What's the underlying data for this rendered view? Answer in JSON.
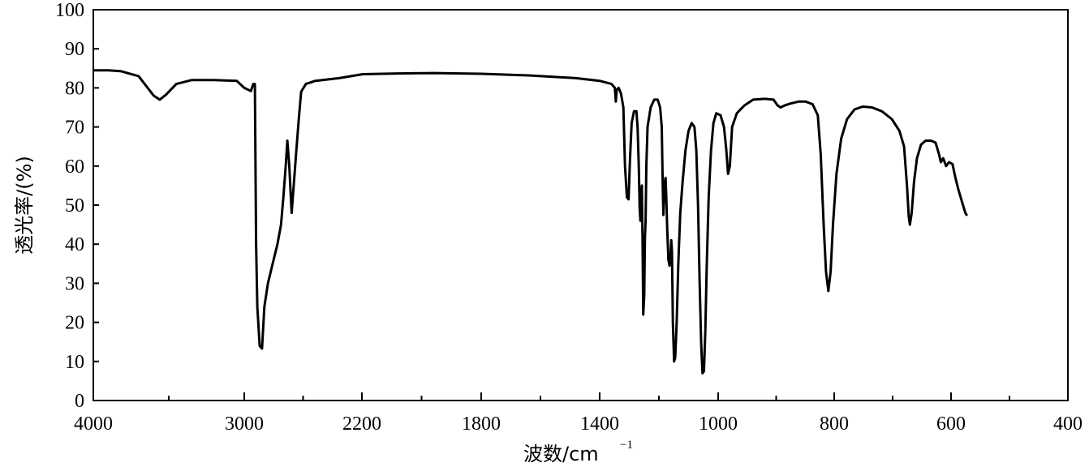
{
  "chart_data": {
    "type": "line",
    "title": "",
    "xlabel_main": "波数/cm",
    "xlabel_sup": "−1",
    "ylabel": "透光率/(%)",
    "ylim": [
      0,
      100
    ],
    "y_ticks": [
      0,
      10,
      20,
      30,
      40,
      50,
      60,
      70,
      80,
      90,
      100
    ],
    "x_tick_labels": [
      "4000",
      "3000",
      "2200",
      "1800",
      "1400",
      "1000",
      "800",
      "600",
      "400"
    ],
    "x_axis_note": "non-linear wavenumber axis: scale changes at 3000 and 1000 cm-1",
    "grid": false,
    "line_color": "#000000",
    "series": [
      {
        "points": [
          [
            4000,
            84.5
          ],
          [
            3900,
            84.5
          ],
          [
            3820,
            84.3
          ],
          [
            3700,
            83.0
          ],
          [
            3600,
            78.0
          ],
          [
            3560,
            77.0
          ],
          [
            3520,
            78.2
          ],
          [
            3450,
            81.0
          ],
          [
            3350,
            82.0
          ],
          [
            3200,
            82.0
          ],
          [
            3050,
            81.8
          ],
          [
            3000,
            80.0
          ],
          [
            2972,
            79.2
          ],
          [
            2962,
            81.0
          ],
          [
            2955,
            81.0
          ],
          [
            2950,
            40.0
          ],
          [
            2945,
            24.0
          ],
          [
            2935,
            14.0
          ],
          [
            2925,
            13.3
          ],
          [
            2915,
            24.0
          ],
          [
            2900,
            30.0
          ],
          [
            2880,
            35.0
          ],
          [
            2860,
            40.0
          ],
          [
            2845,
            45.0
          ],
          [
            2835,
            52.0
          ],
          [
            2825,
            60.0
          ],
          [
            2818,
            66.5
          ],
          [
            2810,
            60.0
          ],
          [
            2800,
            48.0
          ],
          [
            2790,
            56.0
          ],
          [
            2780,
            64.0
          ],
          [
            2770,
            72.0
          ],
          [
            2760,
            79.0
          ],
          [
            2740,
            81.0
          ],
          [
            2700,
            81.8
          ],
          [
            2600,
            82.5
          ],
          [
            2500,
            83.5
          ],
          [
            2350,
            83.7
          ],
          [
            2200,
            83.8
          ],
          [
            2000,
            83.6
          ],
          [
            1800,
            83.2
          ],
          [
            1600,
            82.5
          ],
          [
            1500,
            81.8
          ],
          [
            1450,
            81.0
          ],
          [
            1436,
            80.0
          ],
          [
            1432,
            76.5
          ],
          [
            1428,
            79.5
          ],
          [
            1420,
            80.0
          ],
          [
            1410,
            78.5
          ],
          [
            1400,
            75.0
          ],
          [
            1393,
            60.0
          ],
          [
            1385,
            52.0
          ],
          [
            1378,
            51.5
          ],
          [
            1372,
            62.0
          ],
          [
            1365,
            71.0
          ],
          [
            1355,
            74.0
          ],
          [
            1345,
            74.0
          ],
          [
            1340,
            70.0
          ],
          [
            1335,
            60.0
          ],
          [
            1331,
            49.0
          ],
          [
            1328,
            46.0
          ],
          [
            1325,
            52.0
          ],
          [
            1322,
            55.0
          ],
          [
            1319,
            40.0
          ],
          [
            1316,
            22.0
          ],
          [
            1312,
            27.0
          ],
          [
            1309,
            42.0
          ],
          [
            1306,
            46.0
          ],
          [
            1303,
            60.0
          ],
          [
            1298,
            70.0
          ],
          [
            1285,
            75.0
          ],
          [
            1270,
            77.0
          ],
          [
            1255,
            77.0
          ],
          [
            1245,
            75.0
          ],
          [
            1238,
            70.0
          ],
          [
            1234,
            55.0
          ],
          [
            1231,
            47.5
          ],
          [
            1228,
            52.0
          ],
          [
            1225,
            56.0
          ],
          [
            1222,
            57.0
          ],
          [
            1219,
            52.0
          ],
          [
            1215,
            44.0
          ],
          [
            1210,
            36.0
          ],
          [
            1205,
            34.5
          ],
          [
            1201,
            37.0
          ],
          [
            1198,
            41.0
          ],
          [
            1195,
            38.0
          ],
          [
            1191,
            20.0
          ],
          [
            1186,
            10.0
          ],
          [
            1181,
            11.0
          ],
          [
            1175,
            20.0
          ],
          [
            1168,
            35.0
          ],
          [
            1160,
            48.0
          ],
          [
            1150,
            56.0
          ],
          [
            1138,
            64.0
          ],
          [
            1125,
            69.0
          ],
          [
            1112,
            71.0
          ],
          [
            1100,
            70.0
          ],
          [
            1092,
            64.0
          ],
          [
            1085,
            50.0
          ],
          [
            1078,
            30.0
          ],
          [
            1072,
            15.0
          ],
          [
            1066,
            7.0
          ],
          [
            1060,
            7.5
          ],
          [
            1054,
            18.0
          ],
          [
            1048,
            35.0
          ],
          [
            1040,
            52.0
          ],
          [
            1030,
            64.0
          ],
          [
            1020,
            71.0
          ],
          [
            1008,
            73.5
          ],
          [
            996,
            73.0
          ],
          [
            990,
            70.0
          ],
          [
            986,
            64.0
          ],
          [
            983,
            58.0
          ],
          [
            980,
            60.0
          ],
          [
            976,
            70.0
          ],
          [
            968,
            73.5
          ],
          [
            955,
            75.5
          ],
          [
            940,
            77.0
          ],
          [
            920,
            77.2
          ],
          [
            905,
            77.0
          ],
          [
            898,
            75.5
          ],
          [
            893,
            75.0
          ],
          [
            886,
            75.5
          ],
          [
            876,
            76.0
          ],
          [
            862,
            76.5
          ],
          [
            850,
            76.5
          ],
          [
            838,
            75.8
          ],
          [
            829,
            73.0
          ],
          [
            824,
            63.0
          ],
          [
            819,
            45.0
          ],
          [
            815,
            33.0
          ],
          [
            811,
            28.0
          ],
          [
            807,
            33.0
          ],
          [
            803,
            45.0
          ],
          [
            797,
            58.0
          ],
          [
            789,
            67.0
          ],
          [
            779,
            72.0
          ],
          [
            766,
            74.5
          ],
          [
            752,
            75.2
          ],
          [
            736,
            75.0
          ],
          [
            719,
            74.0
          ],
          [
            702,
            72.0
          ],
          [
            689,
            69.0
          ],
          [
            681,
            65.0
          ],
          [
            676,
            55.0
          ],
          [
            673,
            47.0
          ],
          [
            671,
            45.0
          ],
          [
            668,
            48.0
          ],
          [
            664,
            56.0
          ],
          [
            659,
            62.0
          ],
          [
            652,
            65.5
          ],
          [
            644,
            66.5
          ],
          [
            635,
            66.5
          ],
          [
            627,
            66.0
          ],
          [
            621,
            63.0
          ],
          [
            618,
            61.0
          ],
          [
            614,
            62.0
          ],
          [
            609,
            60.0
          ],
          [
            604,
            61.0
          ],
          [
            598,
            60.5
          ],
          [
            593,
            57.0
          ],
          [
            588,
            54.0
          ],
          [
            582,
            51.0
          ],
          [
            576,
            48.0
          ],
          [
            573,
            47.3
          ]
        ]
      }
    ]
  }
}
